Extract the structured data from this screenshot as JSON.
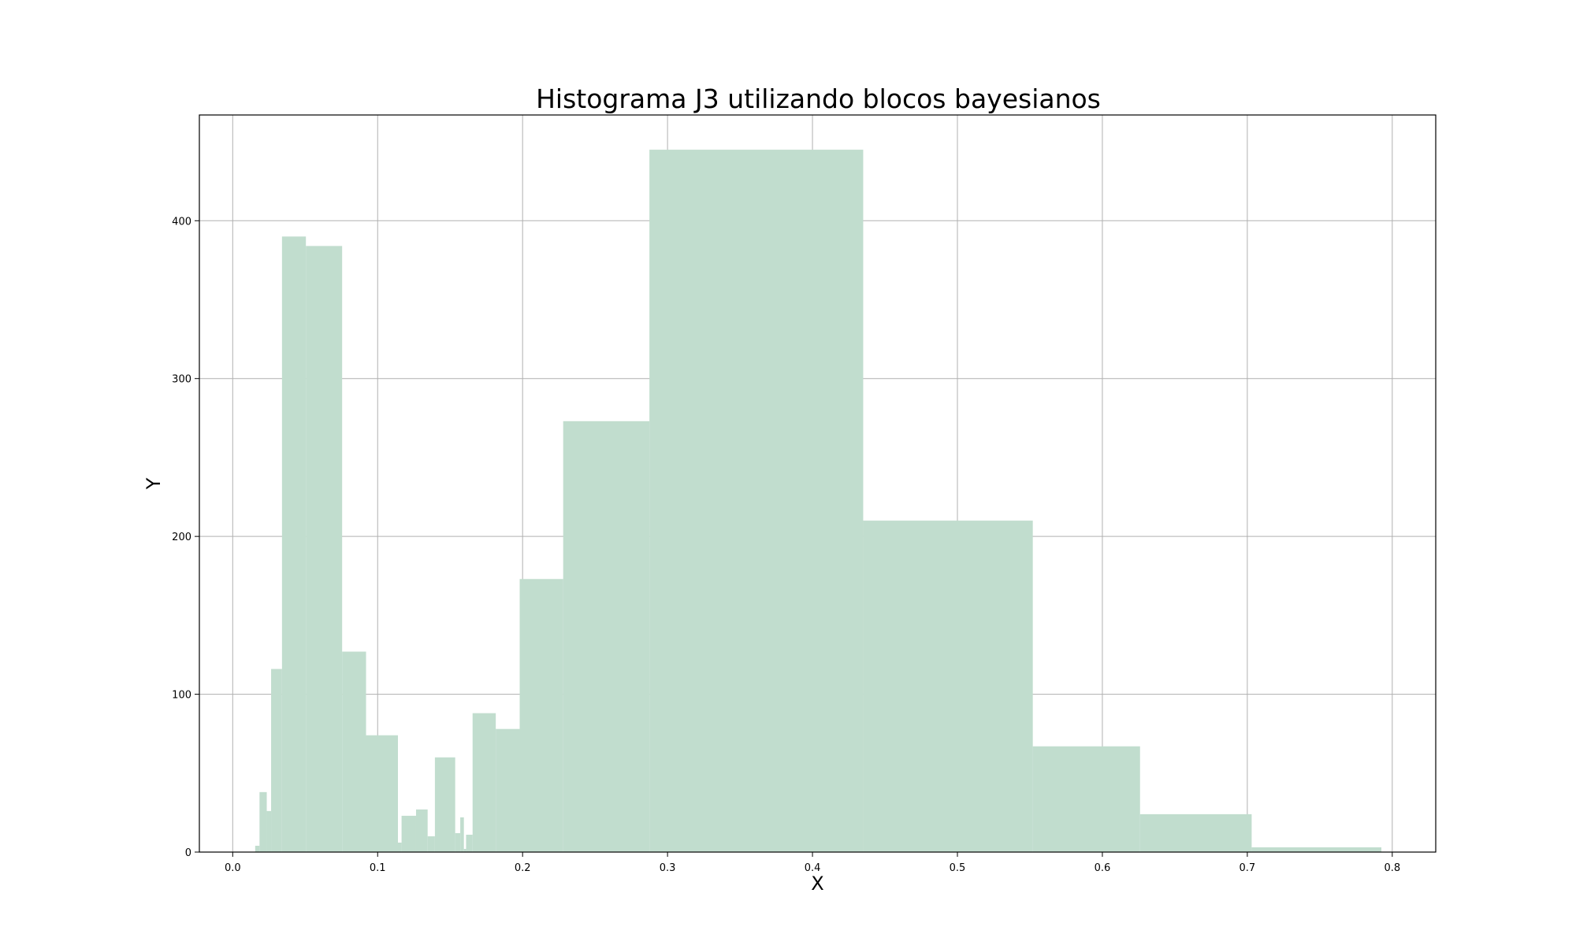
{
  "chart_data": {
    "type": "bar",
    "title": "Histograma J3 utilizando blocos bayesianos",
    "xlabel": "X",
    "ylabel": "Y",
    "xlim": [
      -0.023,
      0.83
    ],
    "ylim": [
      0,
      467
    ],
    "grid": true,
    "bar_color": "#c1ddce",
    "x_ticks": [
      0.0,
      0.1,
      0.2,
      0.3,
      0.4,
      0.5,
      0.6,
      0.7,
      0.8
    ],
    "x_tick_labels": [
      "0.0",
      "0.1",
      "0.2",
      "0.3",
      "0.4",
      "0.5",
      "0.6",
      "0.7",
      "0.8"
    ],
    "y_ticks": [
      0,
      100,
      200,
      300,
      400
    ],
    "y_tick_labels": [
      "0",
      "100",
      "200",
      "300",
      "400"
    ],
    "bins": [
      {
        "x0": 0.0155,
        "x1": 0.0185,
        "value": 4
      },
      {
        "x0": 0.0185,
        "x1": 0.0235,
        "value": 38
      },
      {
        "x0": 0.0235,
        "x1": 0.0265,
        "value": 26
      },
      {
        "x0": 0.0265,
        "x1": 0.034,
        "value": 116
      },
      {
        "x0": 0.034,
        "x1": 0.0505,
        "value": 390
      },
      {
        "x0": 0.0505,
        "x1": 0.0755,
        "value": 384
      },
      {
        "x0": 0.0755,
        "x1": 0.092,
        "value": 127
      },
      {
        "x0": 0.092,
        "x1": 0.114,
        "value": 74
      },
      {
        "x0": 0.114,
        "x1": 0.1165,
        "value": 6
      },
      {
        "x0": 0.1165,
        "x1": 0.1265,
        "value": 23
      },
      {
        "x0": 0.1265,
        "x1": 0.1345,
        "value": 27
      },
      {
        "x0": 0.1345,
        "x1": 0.1395,
        "value": 10
      },
      {
        "x0": 0.1395,
        "x1": 0.1535,
        "value": 60
      },
      {
        "x0": 0.1535,
        "x1": 0.157,
        "value": 12
      },
      {
        "x0": 0.157,
        "x1": 0.1595,
        "value": 22
      },
      {
        "x0": 0.1595,
        "x1": 0.161,
        "value": 2
      },
      {
        "x0": 0.161,
        "x1": 0.1655,
        "value": 11
      },
      {
        "x0": 0.1655,
        "x1": 0.1815,
        "value": 88
      },
      {
        "x0": 0.1815,
        "x1": 0.198,
        "value": 78
      },
      {
        "x0": 0.198,
        "x1": 0.228,
        "value": 173
      },
      {
        "x0": 0.228,
        "x1": 0.2875,
        "value": 273
      },
      {
        "x0": 0.2875,
        "x1": 0.435,
        "value": 445
      },
      {
        "x0": 0.435,
        "x1": 0.552,
        "value": 210
      },
      {
        "x0": 0.552,
        "x1": 0.626,
        "value": 67
      },
      {
        "x0": 0.626,
        "x1": 0.703,
        "value": 24
      },
      {
        "x0": 0.703,
        "x1": 0.7925,
        "value": 3
      }
    ]
  }
}
